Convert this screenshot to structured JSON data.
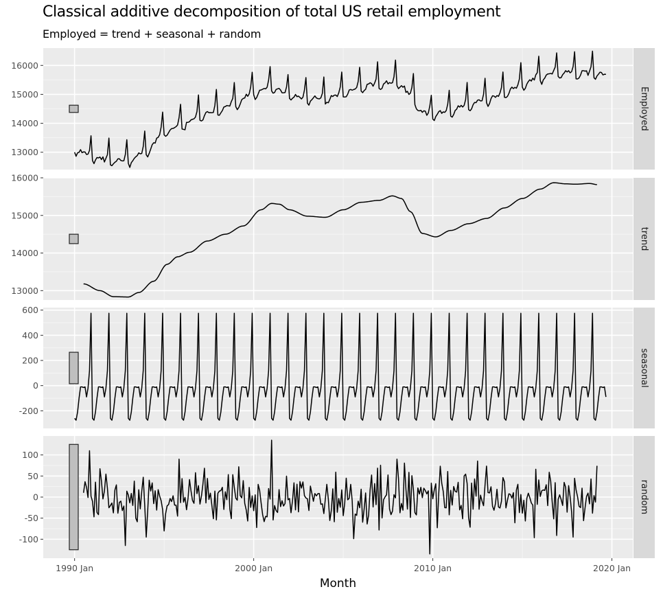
{
  "chart_data": {
    "type": "line",
    "title": "Classical additive decomposition of total US retail employment",
    "subtitle": "Employed = trend + seasonal + random",
    "xlabel": "Month",
    "x_range": [
      "1988-04",
      "2021-03"
    ],
    "x_ticks": [
      "1990 Jan",
      "2000 Jan",
      "2010 Jan",
      "2020 Jan"
    ],
    "grid": true,
    "panels": [
      {
        "name": "Employed",
        "ylim": [
          12400,
          16600
        ],
        "y_ticks": [
          13000,
          14000,
          15000,
          16000
        ],
        "scale_bar_height": 250,
        "start": "1990-01",
        "end": "2019-09",
        "trend_knots": [
          [
            "1990-01",
            13200
          ],
          [
            "1991-01",
            12950
          ],
          [
            "1992-01",
            12800
          ],
          [
            "1993-01",
            12800
          ],
          [
            "1994-01",
            13150
          ],
          [
            "1995-01",
            13800
          ],
          [
            "1996-01",
            14050
          ],
          [
            "1997-01",
            14350
          ],
          [
            "1998-01",
            14550
          ],
          [
            "1999-01",
            14800
          ],
          [
            "2000-01",
            15150
          ],
          [
            "2001-01",
            15330
          ],
          [
            "2002-01",
            15100
          ],
          [
            "2003-01",
            14950
          ],
          [
            "2004-01",
            14950
          ],
          [
            "2005-01",
            15150
          ],
          [
            "2006-01",
            15350
          ],
          [
            "2007-01",
            15450
          ],
          [
            "2008-01",
            15500
          ],
          [
            "2008-10",
            15100
          ],
          [
            "2009-06",
            14500
          ],
          [
            "2010-01",
            14420
          ],
          [
            "2011-01",
            14550
          ],
          [
            "2012-01",
            14750
          ],
          [
            "2013-01",
            14900
          ],
          [
            "2014-01",
            15150
          ],
          [
            "2015-01",
            15450
          ],
          [
            "2016-01",
            15700
          ],
          [
            "2017-01",
            15870
          ],
          [
            "2018-01",
            15840
          ],
          [
            "2019-01",
            15850
          ],
          [
            "2019-09",
            15800
          ]
        ],
        "seasonal_profile": [
          -260,
          -320,
          -260,
          -150,
          -80,
          -60,
          -110,
          -90,
          -140,
          -80,
          120,
          700
        ]
      },
      {
        "name": "trend",
        "ylim": [
          12750,
          16000
        ],
        "y_ticks": [
          13000,
          14000,
          15000,
          16000
        ],
        "scale_bar_height": 250,
        "start": "1990-07",
        "end": "2019-03",
        "knots": [
          [
            "1990-07",
            13180
          ],
          [
            "1991-06",
            13000
          ],
          [
            "1992-03",
            12840
          ],
          [
            "1993-01",
            12830
          ],
          [
            "1993-08",
            12950
          ],
          [
            "1994-06",
            13250
          ],
          [
            "1995-03",
            13700
          ],
          [
            "1995-10",
            13900
          ],
          [
            "1996-06",
            14020
          ],
          [
            "1997-06",
            14320
          ],
          [
            "1998-06",
            14500
          ],
          [
            "1999-06",
            14720
          ],
          [
            "2000-06",
            15150
          ],
          [
            "2001-01",
            15320
          ],
          [
            "2001-06",
            15300
          ],
          [
            "2002-01",
            15150
          ],
          [
            "2003-01",
            14980
          ],
          [
            "2004-01",
            14950
          ],
          [
            "2005-01",
            15150
          ],
          [
            "2006-01",
            15350
          ],
          [
            "2007-01",
            15400
          ],
          [
            "2007-10",
            15520
          ],
          [
            "2008-04",
            15450
          ],
          [
            "2008-10",
            15100
          ],
          [
            "2009-06",
            14520
          ],
          [
            "2010-03",
            14430
          ],
          [
            "2011-01",
            14600
          ],
          [
            "2012-01",
            14780
          ],
          [
            "2013-01",
            14920
          ],
          [
            "2014-01",
            15200
          ],
          [
            "2015-01",
            15450
          ],
          [
            "2016-01",
            15700
          ],
          [
            "2016-10",
            15870
          ],
          [
            "2017-06",
            15840
          ],
          [
            "2018-01",
            15830
          ],
          [
            "2018-10",
            15850
          ],
          [
            "2019-03",
            15820
          ]
        ]
      },
      {
        "name": "seasonal",
        "ylim": [
          -340,
          620
        ],
        "y_ticks": [
          -200,
          0,
          200,
          400,
          600
        ],
        "scale_bar_height": 250,
        "start": "1990-01",
        "end": "2019-09",
        "monthly_values": [
          -260,
          -275,
          -210,
          -100,
          -10,
          -10,
          -15,
          -10,
          -90,
          -20,
          120,
          575
        ]
      },
      {
        "name": "random",
        "ylim": [
          -145,
          145
        ],
        "y_ticks": [
          -100,
          -50,
          0,
          50,
          100
        ],
        "scale_bar_height": 250,
        "start": "1990-07",
        "end": "2019-03",
        "sigma": 33,
        "highlights": [
          [
            "2001-01",
            135
          ],
          [
            "1992-11",
            -115
          ],
          [
            "1994-01",
            -95
          ],
          [
            "2009-11",
            -135
          ],
          [
            "2017-11",
            -95
          ],
          [
            "2008-01",
            90
          ],
          [
            "1995-11",
            90
          ],
          [
            "1990-11",
            110
          ]
        ]
      }
    ]
  }
}
